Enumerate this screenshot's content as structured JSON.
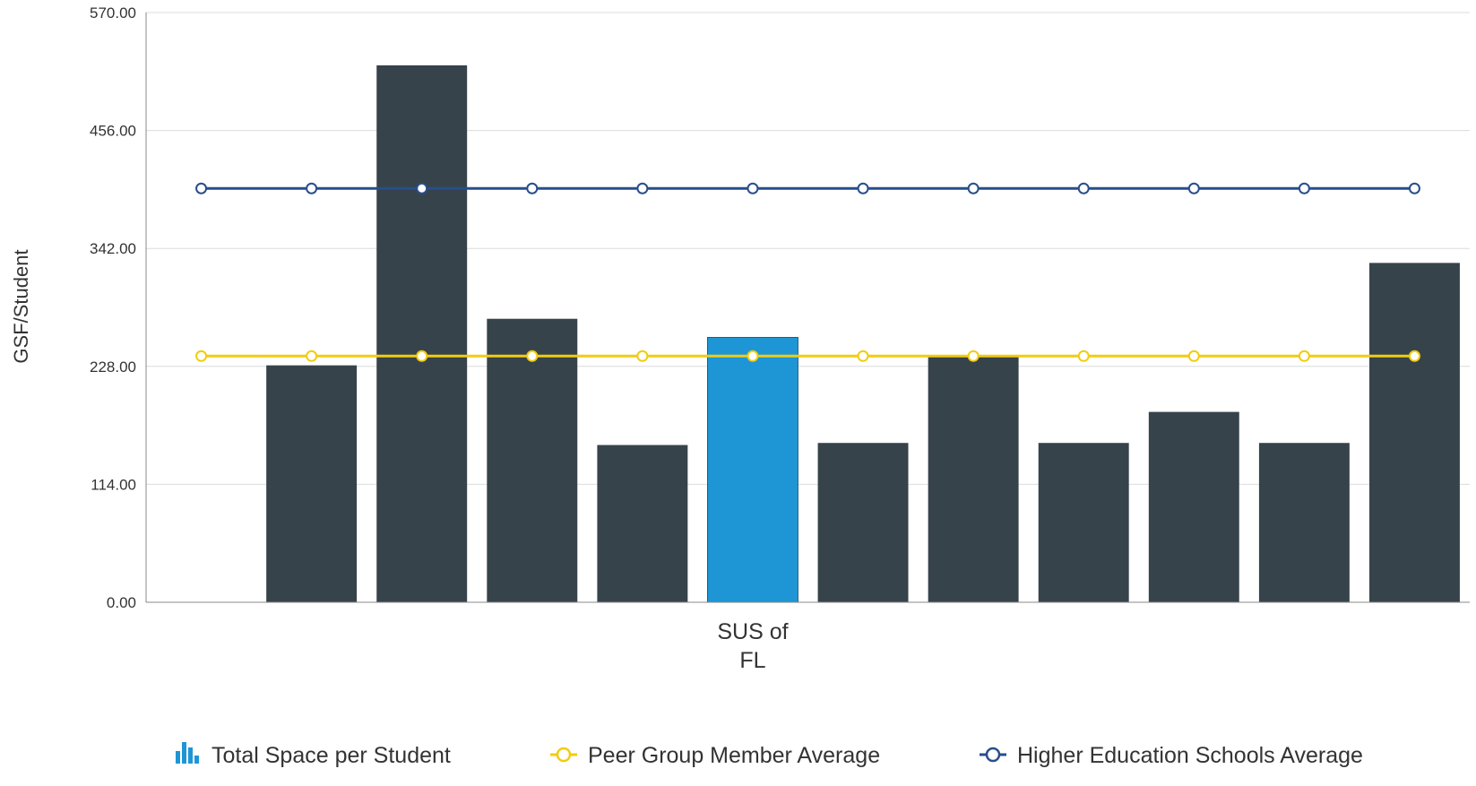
{
  "chart_data": {
    "type": "bar",
    "title": "",
    "xlabel": "",
    "ylabel": "GSF/Student",
    "ylim": [
      0,
      570
    ],
    "yticks": [
      "0.00",
      "114.00",
      "228.00",
      "342.00",
      "456.00",
      "570.00"
    ],
    "grid": true,
    "legend_position": "bottom",
    "categories": [
      "",
      "",
      "",
      "",
      "",
      "SUS of FL",
      "",
      "",
      "",
      "",
      "",
      ""
    ],
    "highlight_index": 5,
    "series": [
      {
        "name": "Total Space per Student",
        "type": "bar",
        "color": "#37434b",
        "highlight_color": "#1e96d5",
        "values": [
          null,
          229,
          519,
          274,
          152,
          256,
          154,
          237,
          154,
          184,
          154,
          328
        ]
      },
      {
        "name": "Peer Group Member Average",
        "type": "line",
        "color": "#f2cc0f",
        "values": [
          238,
          238,
          238,
          238,
          238,
          238,
          238,
          238,
          238,
          238,
          238,
          238
        ]
      },
      {
        "name": "Higher Education Schools Average",
        "type": "line",
        "color": "#284e8c",
        "values": [
          400,
          400,
          400,
          400,
          400,
          400,
          400,
          400,
          400,
          400,
          400,
          400
        ]
      }
    ]
  }
}
